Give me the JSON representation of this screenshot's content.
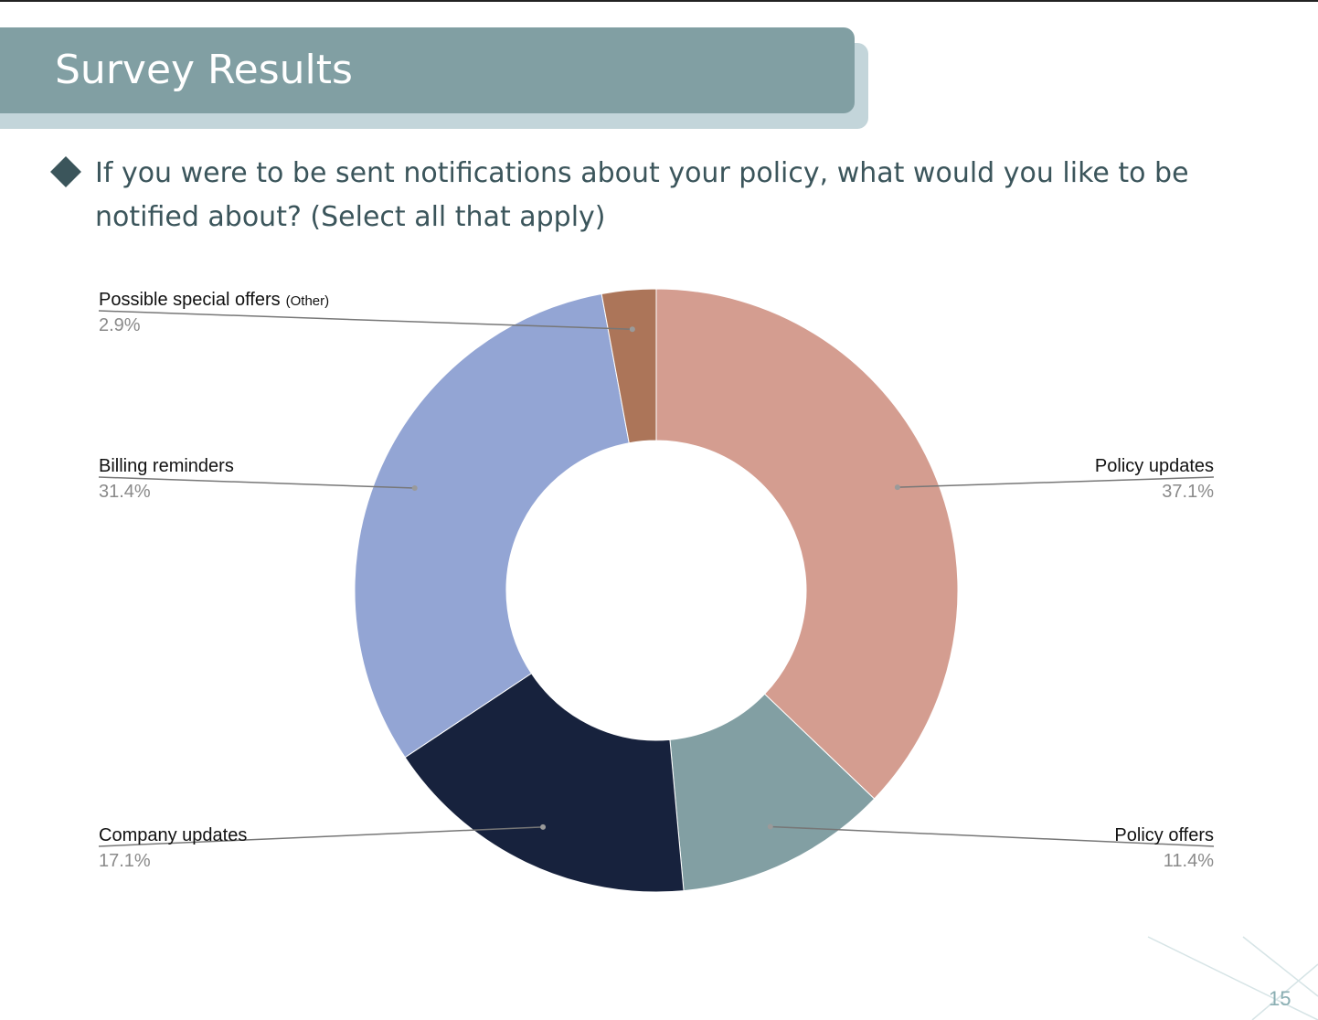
{
  "slide": {
    "title": "Survey Results",
    "question": "If you were to be sent notifications about your policy, what would you like to be notified about? (Select all that apply)",
    "page_number": "15"
  },
  "colors": {
    "banner": "#819fa3",
    "banner_shadow": "#c3d5da",
    "text_dark": "#3b555b"
  },
  "chart_data": {
    "type": "pie",
    "style": "donut",
    "title": "",
    "slices": [
      {
        "label": "Policy updates",
        "note": "",
        "value": 37.1,
        "display": "37.1%",
        "color": "#d49d90"
      },
      {
        "label": "Policy offers",
        "note": "",
        "value": 11.4,
        "display": "11.4%",
        "color": "#829fa3"
      },
      {
        "label": "Company updates",
        "note": "",
        "value": 17.1,
        "display": "17.1%",
        "color": "#17223d"
      },
      {
        "label": "Billing reminders",
        "note": "",
        "value": 31.4,
        "display": "31.4%",
        "color": "#93a5d4"
      },
      {
        "label": "Possible special offers",
        "note": "(Other)",
        "value": 2.9,
        "display": "2.9%",
        "color": "#ac7559"
      }
    ]
  }
}
